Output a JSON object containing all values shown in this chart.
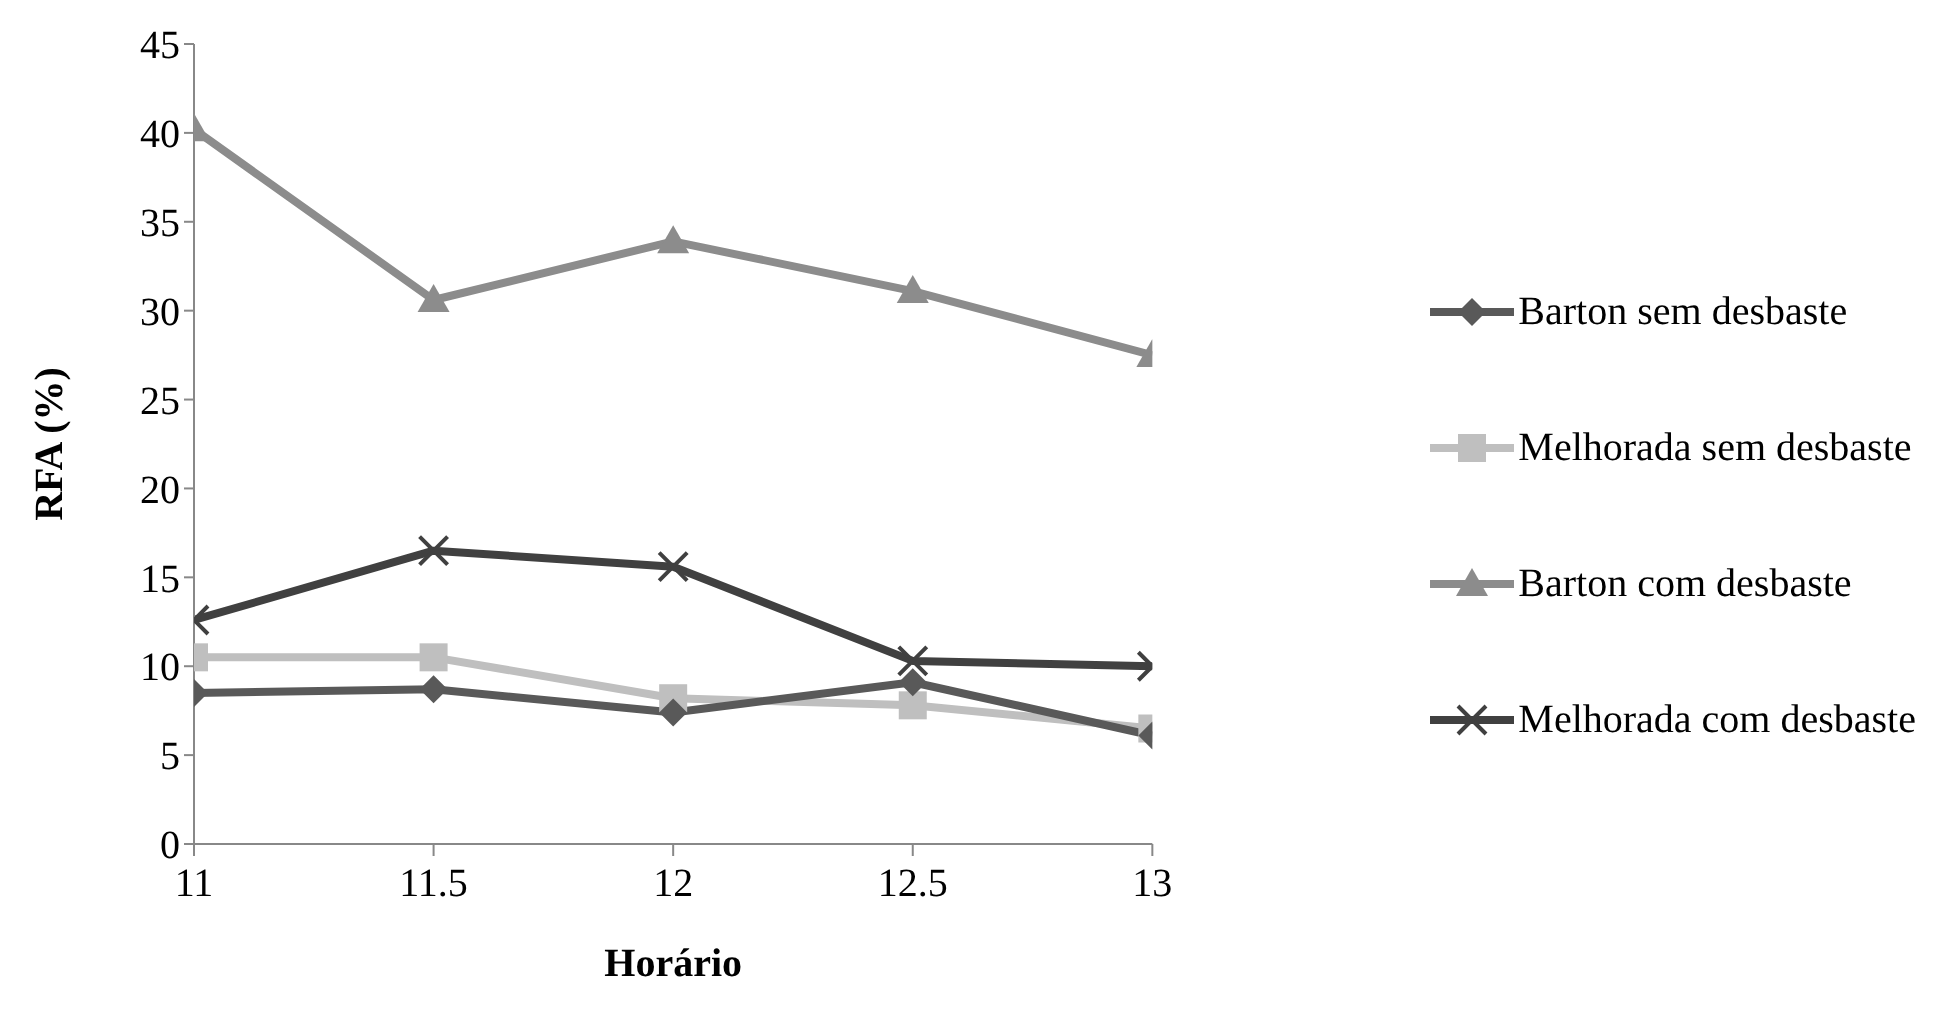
{
  "chart_data": {
    "type": "line",
    "xlabel": "Horário",
    "ylabel": "RFA (%)",
    "x": [
      11,
      11.5,
      12,
      12.5,
      13
    ],
    "xlim": [
      11,
      13
    ],
    "xticks": [
      11,
      11.5,
      12,
      12.5,
      13
    ],
    "ylim": [
      0,
      45
    ],
    "yticks": [
      0,
      5,
      10,
      15,
      20,
      25,
      30,
      35,
      40,
      45
    ],
    "grid": false,
    "legend": "right",
    "line_style": "solid",
    "series": [
      {
        "name": "Barton sem desbaste",
        "color": "#595959",
        "marker": "diamond",
        "values": [
          8.5,
          8.7,
          7.4,
          9.1,
          6.1
        ]
      },
      {
        "name": "Melhorada sem desbaste",
        "color": "#bfbfbf",
        "marker": "square",
        "values": [
          10.5,
          10.5,
          8.2,
          7.8,
          6.5
        ]
      },
      {
        "name": "Barton com desbaste",
        "color": "#8c8c8c",
        "marker": "triangle",
        "values": [
          40.2,
          30.6,
          33.9,
          31.1,
          27.5
        ]
      },
      {
        "name": "Melhorada com desbaste",
        "color": "#404040",
        "marker": "cross",
        "values": [
          12.6,
          16.5,
          15.6,
          10.3,
          10.0
        ]
      }
    ]
  }
}
